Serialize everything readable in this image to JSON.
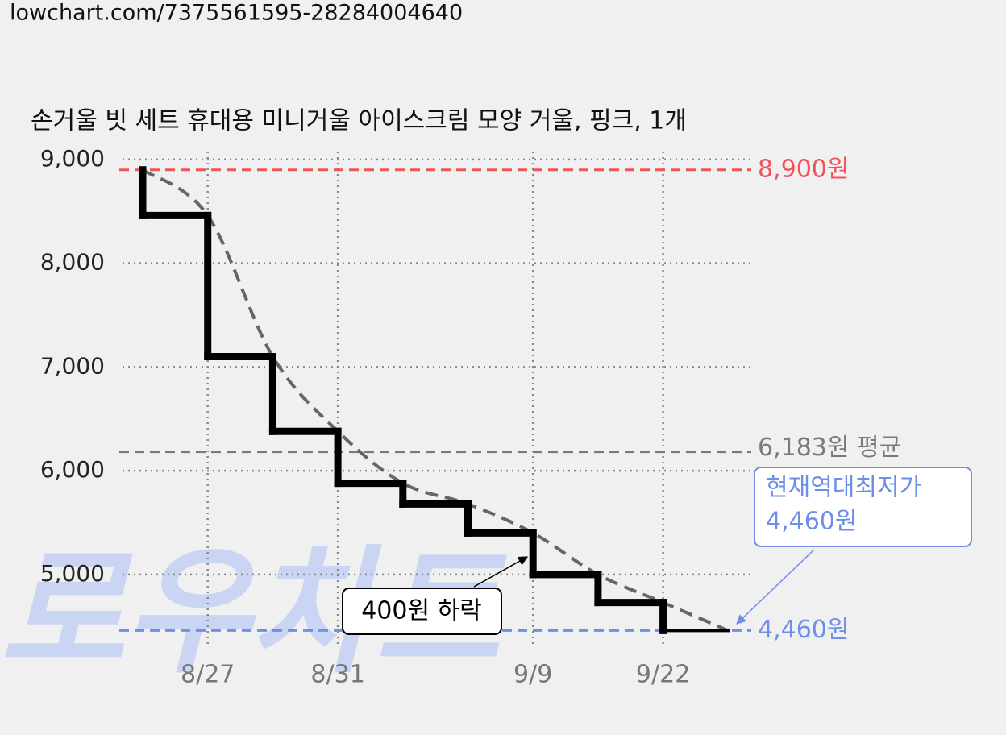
{
  "url": "lowchart.com/7375561595-28284004640",
  "watermark": "로우차트",
  "chart_data": {
    "type": "step",
    "title": "손거울 빗 세트 휴대용 미니거울 아이스크림 모양 거울, 핑크, 1개",
    "categories": [
      null,
      "8/27",
      null,
      "8/31",
      null,
      null,
      "9/9",
      null,
      "9/22"
    ],
    "values": [
      8460,
      7100,
      6380,
      5880,
      5680,
      5400,
      5000,
      4730,
      4460
    ],
    "color": "#000000",
    "ylim": [
      4300,
      9100
    ],
    "yticks": [
      {
        "value": 5000,
        "label": "5,000"
      },
      {
        "value": 6000,
        "label": "6,000"
      },
      {
        "value": 7000,
        "label": "7,000"
      },
      {
        "value": 8000,
        "label": "8,000"
      },
      {
        "value": 9000,
        "label": "9,000"
      }
    ],
    "grid": true,
    "max_line": {
      "value": 8900,
      "label": "8,900원",
      "color": "#f0545a"
    },
    "avg_line": {
      "value": 6183,
      "label": "6,183원 평균",
      "color": "#7a7a7a"
    },
    "min_line": {
      "value": 4460,
      "label": "4,460원",
      "color": "#6d8fe8"
    },
    "annotation": "400원 하락",
    "callout": [
      "현재역대최저가",
      "4,460원"
    ]
  }
}
